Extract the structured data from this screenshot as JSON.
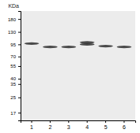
{
  "chart_data": {
    "type": "gel",
    "y_label": "KDa",
    "categories": [
      "1",
      "2",
      "3",
      "4",
      "5",
      "6"
    ],
    "series": [
      {
        "values": [
          97,
          89,
          89,
          95,
          91,
          89
        ]
      },
      {
        "values": [
          null,
          null,
          null,
          100,
          null,
          null
        ]
      }
    ],
    "color": "#222222",
    "log": "y",
    "ylim": [
      14,
      220
    ],
    "yticks": [
      180,
      130,
      95,
      70,
      55,
      40,
      35,
      25,
      17
    ]
  }
}
